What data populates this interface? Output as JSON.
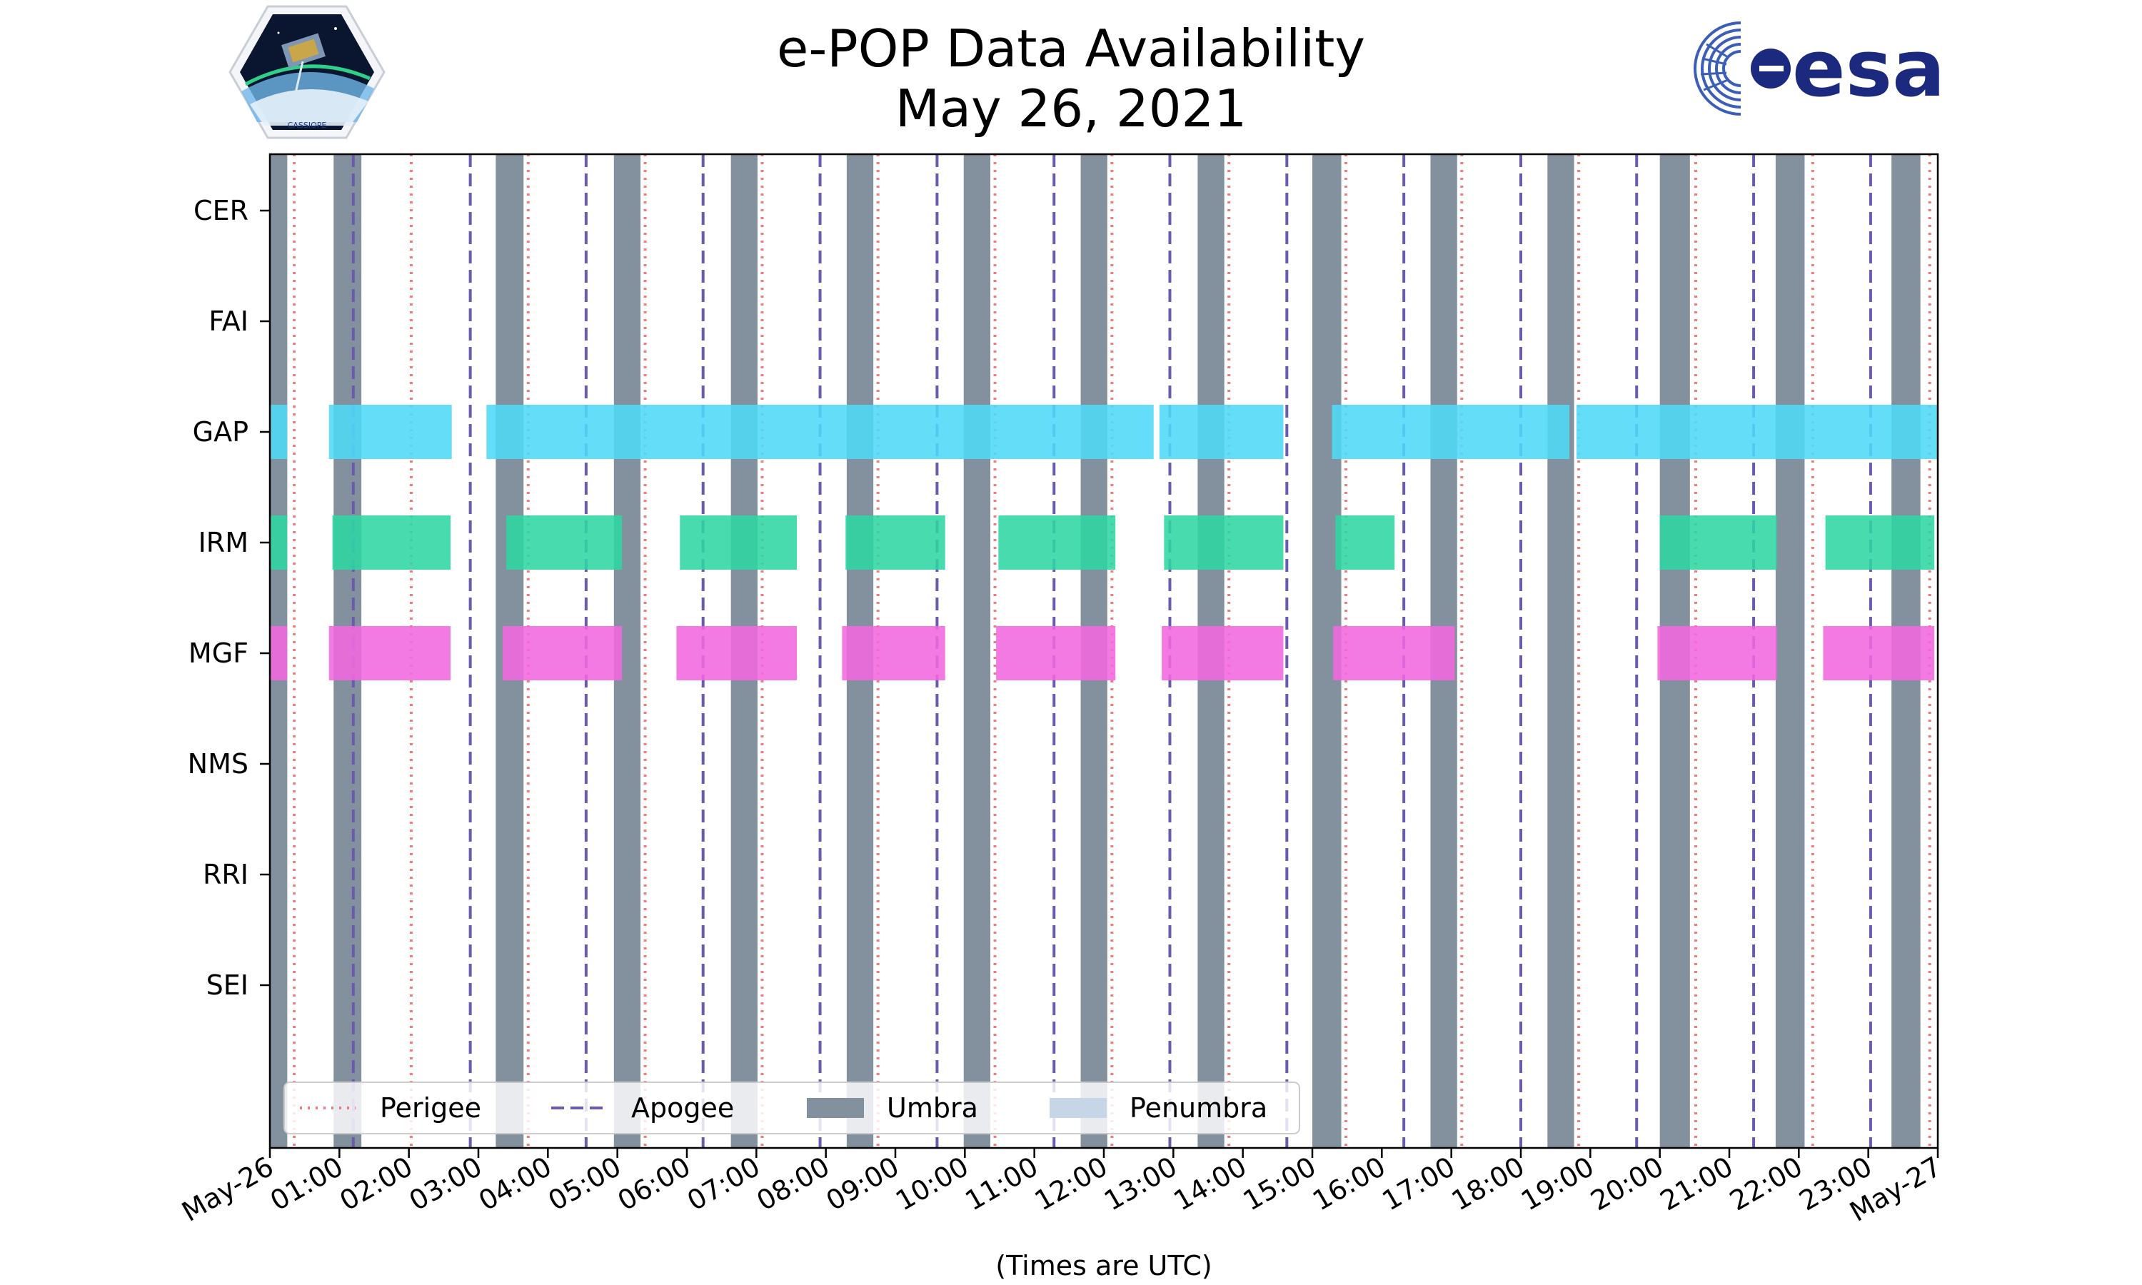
{
  "header": {
    "title_line1": "e-POP Data Availability",
    "title_line2": "May 26, 2021",
    "mission_logo_text": "CASSIOPE",
    "agency_logo_text": "esa"
  },
  "colors": {
    "perigee": "#f07b7b",
    "apogee": "#6a5bb0",
    "umbra": "#83919f",
    "penumbra": "#c6d6e6",
    "GAP": "#4fd9f7",
    "IRM": "#2dd6a3",
    "MGF": "#f268df",
    "agency_blue": "#1b2a7f"
  },
  "chart_data": {
    "type": "timeline",
    "title": "e-POP Data Availability",
    "subtitle": "May 26, 2021",
    "xlabel": "(Times are UTC)",
    "ylabel": "",
    "x_range": [
      "2021-05-26 00:00",
      "2021-05-27 00:00"
    ],
    "x_tick_labels": [
      "May-26",
      "01:00",
      "02:00",
      "03:00",
      "04:00",
      "05:00",
      "06:00",
      "07:00",
      "08:00",
      "09:00",
      "10:00",
      "11:00",
      "12:00",
      "13:00",
      "14:00",
      "15:00",
      "16:00",
      "17:00",
      "18:00",
      "19:00",
      "20:00",
      "21:00",
      "22:00",
      "23:00",
      "May-27"
    ],
    "instruments": [
      "CER",
      "FAI",
      "GAP",
      "IRM",
      "MGF",
      "NMS",
      "RRI",
      "SEI"
    ],
    "availability": {
      "CER": [],
      "FAI": [],
      "GAP": [
        [
          "00:00",
          "00:15"
        ],
        [
          "00:51",
          "02:37"
        ],
        [
          "03:07",
          "12:43"
        ],
        [
          "12:48",
          "14:35"
        ],
        [
          "15:17",
          "18:42"
        ],
        [
          "18:48",
          "24:00"
        ]
      ],
      "IRM": [
        [
          "00:00",
          "00:15"
        ],
        [
          "00:54",
          "02:36"
        ],
        [
          "03:24",
          "05:04"
        ],
        [
          "05:54",
          "07:35"
        ],
        [
          "08:17",
          "09:43"
        ],
        [
          "10:29",
          "12:10"
        ],
        [
          "12:52",
          "14:35"
        ],
        [
          "15:20",
          "16:11"
        ],
        [
          "20:00",
          "21:41"
        ],
        [
          "22:23",
          "23:57"
        ]
      ],
      "MGF": [
        [
          "00:00",
          "00:15"
        ],
        [
          "00:51",
          "02:36"
        ],
        [
          "03:21",
          "05:04"
        ],
        [
          "05:51",
          "07:35"
        ],
        [
          "08:14",
          "09:43"
        ],
        [
          "10:27",
          "12:10"
        ],
        [
          "12:50",
          "14:35"
        ],
        [
          "15:18",
          "17:03"
        ],
        [
          "19:58",
          "21:41"
        ],
        [
          "22:21",
          "23:57"
        ]
      ],
      "NMS": [],
      "RRI": [],
      "SEI": []
    },
    "perigee_times": [
      "00:21",
      "02:02",
      "03:43",
      "05:24",
      "07:05",
      "08:45",
      "10:26",
      "12:07",
      "13:48",
      "15:29",
      "17:09",
      "18:50",
      "20:31",
      "22:12",
      "23:53"
    ],
    "apogee_times": [
      "01:12",
      "02:53",
      "04:33",
      "06:14",
      "07:55",
      "09:36",
      "11:17",
      "12:57",
      "14:38",
      "16:19",
      "18:00",
      "19:40",
      "21:21",
      "23:02"
    ],
    "umbra_intervals": [
      [
        "00:00",
        "00:15"
      ],
      [
        "00:55",
        "01:19"
      ],
      [
        "03:15",
        "03:39"
      ],
      [
        "04:57",
        "05:20"
      ],
      [
        "06:38",
        "07:01"
      ],
      [
        "08:18",
        "08:41"
      ],
      [
        "09:59",
        "10:22"
      ],
      [
        "11:40",
        "12:03"
      ],
      [
        "13:21",
        "13:44"
      ],
      [
        "15:00",
        "15:25"
      ],
      [
        "16:42",
        "17:05"
      ],
      [
        "18:23",
        "18:46"
      ],
      [
        "20:00",
        "20:26"
      ],
      [
        "21:40",
        "22:05"
      ],
      [
        "23:20",
        "23:45"
      ]
    ],
    "penumbra_intervals": [],
    "legend": {
      "position": "lower-left",
      "entries": [
        "Perigee",
        "Apogee",
        "Umbra",
        "Penumbra"
      ]
    }
  }
}
